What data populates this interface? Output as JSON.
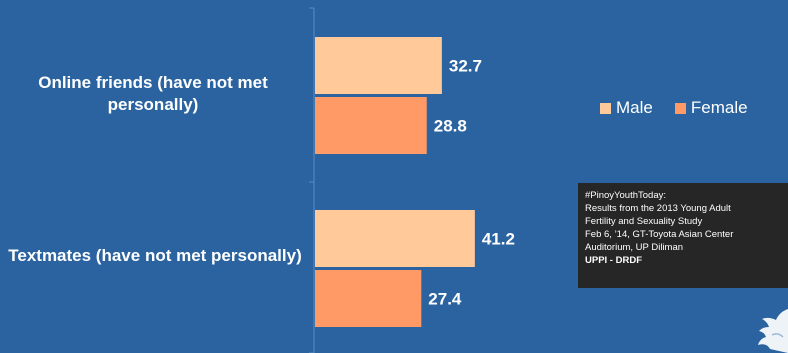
{
  "chart_data": {
    "type": "bar",
    "orientation": "horizontal",
    "categories": [
      "Online friends (have not met personally)",
      "Textmates (have not met personally)"
    ],
    "series": [
      {
        "name": "Male",
        "color": "#ffc999",
        "values": [
          32.7,
          41.2
        ]
      },
      {
        "name": "Female",
        "color": "#ff9966",
        "values": [
          28.8,
          27.4
        ]
      }
    ],
    "data_labels": [
      "32.7",
      "28.8",
      "41.2",
      "27.4"
    ],
    "xlim": [
      0,
      50
    ],
    "grid": false,
    "legend_position": "right"
  },
  "legend": {
    "male": "Male",
    "female": "Female"
  },
  "caption": {
    "line1": "#PinoyYouthToday:",
    "line2": "Results from the 2013 Young Adult",
    "line3": "Fertility and Sexuality Study",
    "line4": "Feb 6, ’14, GT-Toyota Asian Center",
    "line5": "Auditorium, UP Diliman",
    "line6": "UPPI - DRDF"
  },
  "colors": {
    "background": "#2a63a0",
    "male": "#ffc999",
    "female": "#ff9966",
    "label_text": "#ffffff",
    "caption_bg": "#262626"
  },
  "icons": {
    "corner": "twitter-bird-icon"
  }
}
